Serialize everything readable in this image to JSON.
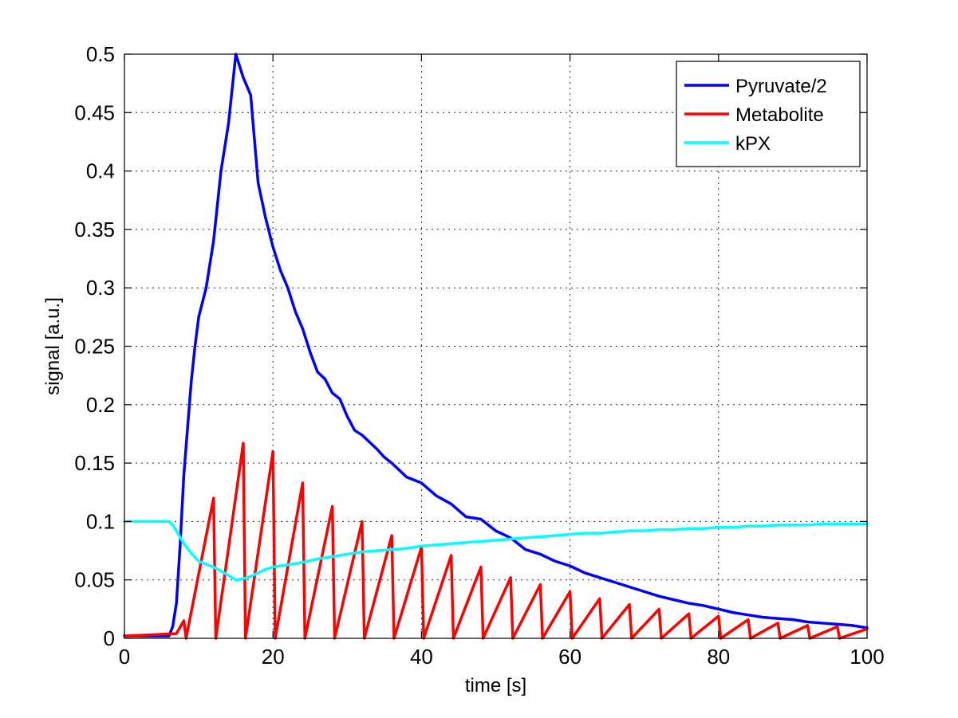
{
  "chart_data": {
    "type": "line",
    "xlabel": "time [s]",
    "ylabel": "signal [a.u.]",
    "xlim": [
      0,
      100
    ],
    "ylim": [
      0,
      0.5
    ],
    "xticks": [
      0,
      20,
      40,
      60,
      80,
      100
    ],
    "xtick_labels": [
      "0",
      "20",
      "40",
      "60",
      "80",
      "100"
    ],
    "yticks": [
      0,
      0.05,
      0.1,
      0.15,
      0.2,
      0.25,
      0.3,
      0.35,
      0.4,
      0.45,
      0.5
    ],
    "ytick_labels": [
      "0",
      "0.05",
      "0.1",
      "0.15",
      "0.2",
      "0.25",
      "0.3",
      "0.35",
      "0.4",
      "0.45",
      "0.5"
    ],
    "grid": true,
    "legend_position": "top-right",
    "series": [
      {
        "name": "Pyruvate/2",
        "color": "#0000ff",
        "x": [
          0,
          1,
          2,
          3,
          4,
          5,
          6,
          6.5,
          7,
          7.5,
          8,
          8.5,
          9,
          9.5,
          10,
          11,
          12,
          13,
          14,
          15,
          16,
          17,
          18,
          19,
          20,
          21,
          22,
          23,
          24,
          25,
          26,
          27,
          28,
          29,
          30,
          31,
          32,
          33,
          34,
          35,
          36,
          38,
          40,
          42,
          44,
          46,
          48,
          50,
          52,
          54,
          56,
          58,
          60,
          62,
          64,
          66,
          68,
          70,
          72,
          74,
          76,
          78,
          80,
          82,
          84,
          86,
          88,
          90,
          92,
          94,
          96,
          98,
          100
        ],
        "values": [
          0.002,
          0.002,
          0.002,
          0.002,
          0.002,
          0.002,
          0.002,
          0.01,
          0.03,
          0.08,
          0.14,
          0.18,
          0.22,
          0.25,
          0.275,
          0.3,
          0.34,
          0.4,
          0.44,
          0.5,
          0.48,
          0.465,
          0.39,
          0.36,
          0.335,
          0.315,
          0.3,
          0.28,
          0.265,
          0.245,
          0.228,
          0.222,
          0.21,
          0.205,
          0.19,
          0.178,
          0.174,
          0.168,
          0.162,
          0.155,
          0.15,
          0.138,
          0.133,
          0.122,
          0.115,
          0.104,
          0.102,
          0.092,
          0.086,
          0.076,
          0.072,
          0.066,
          0.062,
          0.056,
          0.052,
          0.048,
          0.044,
          0.04,
          0.036,
          0.033,
          0.03,
          0.028,
          0.025,
          0.022,
          0.02,
          0.018,
          0.017,
          0.016,
          0.014,
          0.013,
          0.012,
          0.011,
          0.009
        ]
      },
      {
        "name": "Metabolite",
        "color": "#ff0000",
        "x": [
          0,
          7,
          8,
          8.3,
          12,
          12.3,
          16,
          16.3,
          20,
          20.3,
          24,
          24.3,
          28,
          28.3,
          32,
          32.3,
          36,
          36.3,
          40,
          40.3,
          44,
          44.3,
          48,
          48.3,
          52,
          52.3,
          56,
          56.3,
          60,
          60.3,
          64,
          64.3,
          68,
          68.3,
          72,
          72.3,
          76,
          76.3,
          80,
          80.3,
          84,
          84.3,
          88,
          88.3,
          92,
          92.3,
          96,
          96.3,
          100
        ],
        "values": [
          0.002,
          0.004,
          0.015,
          0.0,
          0.12,
          0.0,
          0.167,
          0.0,
          0.16,
          0.0,
          0.133,
          0.0,
          0.113,
          0.0,
          0.1,
          0.0,
          0.088,
          0.0,
          0.078,
          0.0,
          0.071,
          0.0,
          0.061,
          0.0,
          0.052,
          0.0,
          0.046,
          0.0,
          0.04,
          0.0,
          0.034,
          0.0,
          0.029,
          0.0,
          0.025,
          0.0,
          0.021,
          0.0,
          0.019,
          0.0,
          0.016,
          0.0,
          0.013,
          0.0,
          0.011,
          0.0,
          0.01,
          0.0,
          0.008
        ]
      },
      {
        "name": "kPX",
        "color": "#00ffff",
        "x": [
          0,
          3,
          6,
          6.5,
          7,
          8,
          9,
          10,
          12,
          14,
          15,
          16,
          17,
          18,
          19,
          20,
          22,
          24,
          26,
          28,
          30,
          32,
          34,
          36,
          38,
          40,
          42,
          44,
          46,
          48,
          50,
          52,
          54,
          56,
          58,
          60,
          62,
          64,
          66,
          68,
          70,
          72,
          74,
          76,
          78,
          80,
          82,
          84,
          86,
          88,
          90,
          92,
          94,
          96,
          98,
          100
        ],
        "values": [
          0.1,
          0.1,
          0.1,
          0.097,
          0.092,
          0.081,
          0.073,
          0.066,
          0.061,
          0.054,
          0.05,
          0.051,
          0.053,
          0.056,
          0.059,
          0.061,
          0.063,
          0.065,
          0.068,
          0.07,
          0.072,
          0.074,
          0.075,
          0.076,
          0.077,
          0.079,
          0.08,
          0.081,
          0.082,
          0.083,
          0.084,
          0.085,
          0.086,
          0.087,
          0.088,
          0.089,
          0.09,
          0.09,
          0.091,
          0.092,
          0.092,
          0.093,
          0.093,
          0.094,
          0.094,
          0.095,
          0.095,
          0.096,
          0.096,
          0.097,
          0.097,
          0.097,
          0.098,
          0.098,
          0.098,
          0.098
        ]
      }
    ]
  }
}
